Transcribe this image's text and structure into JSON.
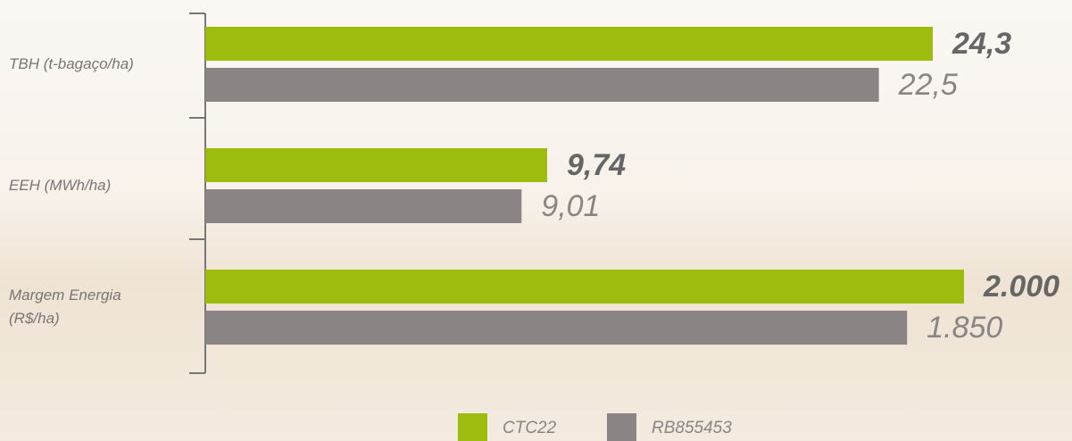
{
  "chart_data": {
    "type": "bar",
    "orientation": "horizontal",
    "categories": [
      "TBH (t-bagaço/ha)",
      "EEH (MWh/ha)",
      "Margem Energia (R$/ha)"
    ],
    "series": [
      {
        "name": "CTC22",
        "color": "#9dbd0e",
        "values": [
          24.3,
          9.74,
          2000
        ],
        "value_labels": [
          "24,3",
          "9,74",
          "2.000"
        ]
      },
      {
        "name": "RB855453",
        "color": "#8a8484",
        "values": [
          22.5,
          9.01,
          1850
        ],
        "value_labels": [
          "22,5",
          "9,01",
          "1.850"
        ]
      }
    ],
    "legend": "bottom"
  }
}
